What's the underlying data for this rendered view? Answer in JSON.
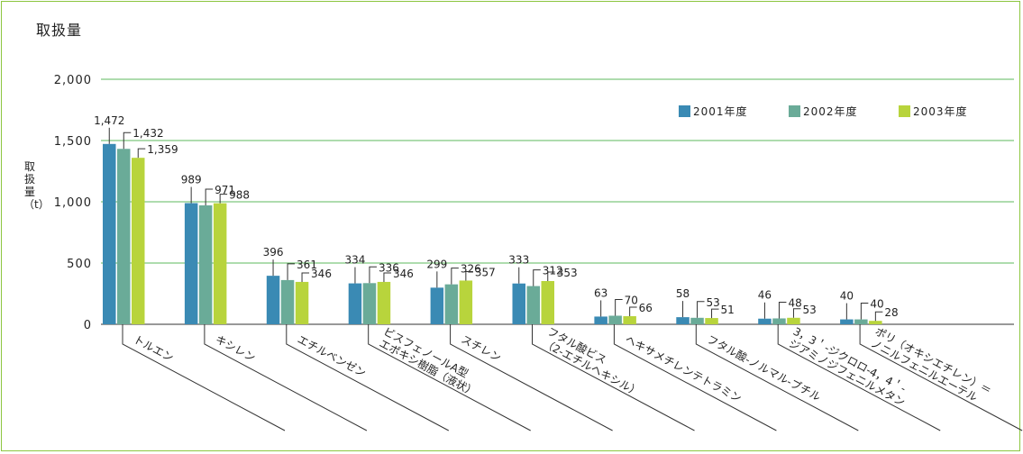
{
  "chart_data": {
    "type": "bar",
    "title": "取扱量",
    "ylabel": "取扱量（t）",
    "xlabel": "",
    "ylim": [
      0,
      2000
    ],
    "yticks": [
      "0",
      "500",
      "1,000",
      "1,500",
      "2,000"
    ],
    "grid": true,
    "legend_position": "top-right",
    "categories": [
      "トルエン",
      "キシレン",
      "エチルベンゼン",
      "ビスフェノールA型\nエポキシ樹脂（液状）",
      "スチレン",
      "フタル酸ビス\n（2-エチルヘキシル）",
      "ヘキサメチレンテトラミン",
      "フタル酸-ノルマル-ブチル",
      "3，3＇-ジクロロ-4，4＇-\nジアミノジフェニルメタン",
      "ポリ（オキシエチレン）＝\nノニルフェニルエーテル"
    ],
    "series": [
      {
        "name": "2001年度",
        "color": "#3a8ab4",
        "values": [
          1472,
          989,
          396,
          334,
          299,
          333,
          63,
          58,
          46,
          40
        ],
        "labels": [
          "1,472",
          "989",
          "396",
          "334",
          "299",
          "333",
          "63",
          "58",
          "46",
          "40"
        ]
      },
      {
        "name": "2002年度",
        "color": "#6aab98",
        "values": [
          1432,
          971,
          361,
          336,
          326,
          312,
          70,
          53,
          48,
          40
        ],
        "labels": [
          "1,432",
          "971",
          "361",
          "336",
          "326",
          "312",
          "70",
          "53",
          "48",
          "40"
        ]
      },
      {
        "name": "2003年度",
        "color": "#b8d43c",
        "values": [
          1359,
          988,
          346,
          346,
          357,
          353,
          66,
          51,
          53,
          28
        ],
        "labels": [
          "1,359",
          "988",
          "346",
          "346",
          "357",
          "353",
          "66",
          "51",
          "53",
          "28"
        ]
      }
    ]
  }
}
